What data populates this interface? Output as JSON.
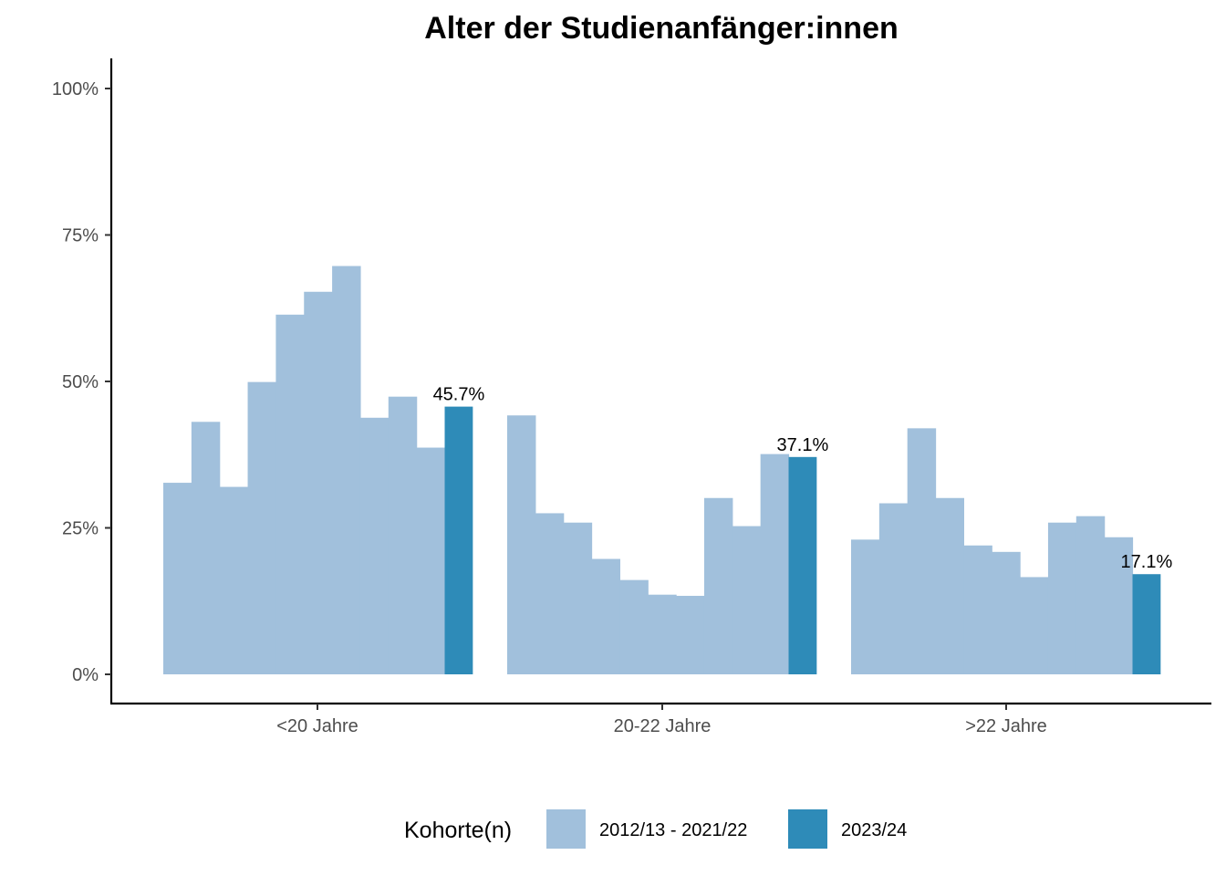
{
  "chart_data": {
    "type": "bar",
    "title": "Alter der Studienanfänger:innen",
    "xlabel": "",
    "ylabel": "",
    "ylim": [
      0,
      1.05
    ],
    "y_ticks": [
      {
        "value": 0,
        "label": "0%"
      },
      {
        "value": 0.25,
        "label": "25%"
      },
      {
        "value": 0.5,
        "label": "50%"
      },
      {
        "value": 0.75,
        "label": "75%"
      },
      {
        "value": 1,
        "label": "100%"
      }
    ],
    "categories": [
      "<20 Jahre",
      "20-22 Jahre",
      ">22 Jahre"
    ],
    "series": [
      {
        "name": "2012/13 - 2021/22",
        "color": "#a1c0dc",
        "values": [
          [
            0.327,
            0.431,
            0.32,
            0.499,
            0.614,
            0.653,
            0.697,
            0.438,
            0.474,
            0.387
          ],
          [
            0.442,
            0.275,
            0.259,
            0.197,
            0.161,
            0.136,
            0.134,
            0.301,
            0.253,
            0.376
          ],
          [
            0.23,
            0.292,
            0.42,
            0.301,
            0.22,
            0.209,
            0.166,
            0.259,
            0.27,
            0.234
          ]
        ]
      },
      {
        "name": "2023/24",
        "color": "#2e8bb8",
        "values": [
          0.457,
          0.371,
          0.171
        ],
        "labels": [
          "45.7%",
          "37.1%",
          "17.1%"
        ]
      }
    ],
    "legend": {
      "position": "bottom",
      "title": "Kohorte(n)"
    },
    "grid": false
  }
}
